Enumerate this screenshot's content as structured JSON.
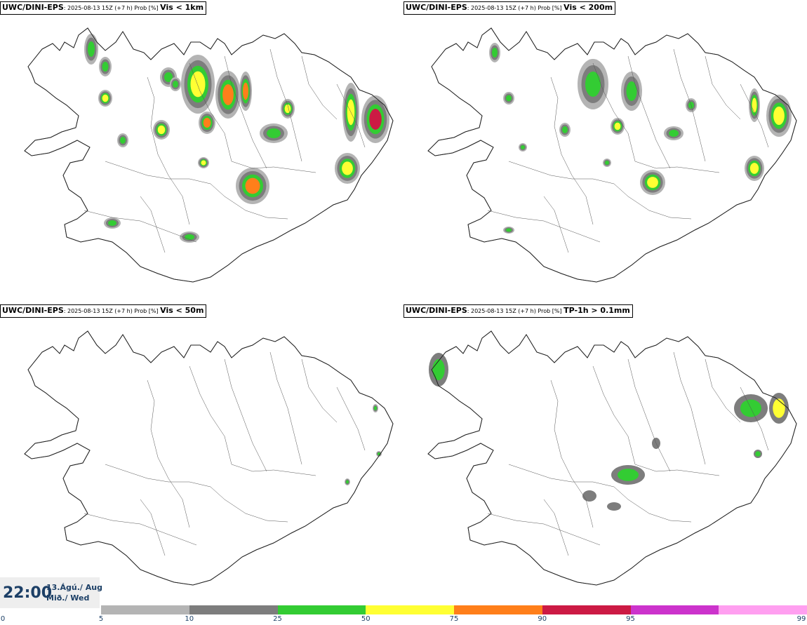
{
  "panels": [
    {
      "model": "UWC/DINI-EPS",
      "meta": ": 2025-08-13 15Z (+7 h) Prob [%] ",
      "variable": "Vis < 1km",
      "intensity": "high"
    },
    {
      "model": "UWC/DINI-EPS",
      "meta": ": 2025-08-13 15Z (+7 h) Prob [%] ",
      "variable": "Vis < 200m",
      "intensity": "medium"
    },
    {
      "model": "UWC/DINI-EPS",
      "meta": ": 2025-08-13 15Z (+7 h) Prob [%] ",
      "variable": "Vis < 50m",
      "intensity": "low"
    },
    {
      "model": "UWC/DINI-EPS",
      "meta": ": 2025-08-13 15Z (+7 h) Prob [%] ",
      "variable": "TP-1h > 0.1mm",
      "intensity": "precip"
    }
  ],
  "time": {
    "clock": "22:00",
    "date_line1": "13.Ágú./ Aug",
    "date_line2": "Mið./ Wed"
  },
  "legend": {
    "ticks": [
      "0",
      "5",
      "10",
      "25",
      "50",
      "75",
      "90",
      "95",
      "99"
    ],
    "colors": [
      "#b4b4b4",
      "#7d7d7d",
      "#33cc33",
      "#ffff33",
      "#ff7f1a",
      "#cc1a44",
      "#cc33cc",
      "#ff9ff0"
    ]
  }
}
